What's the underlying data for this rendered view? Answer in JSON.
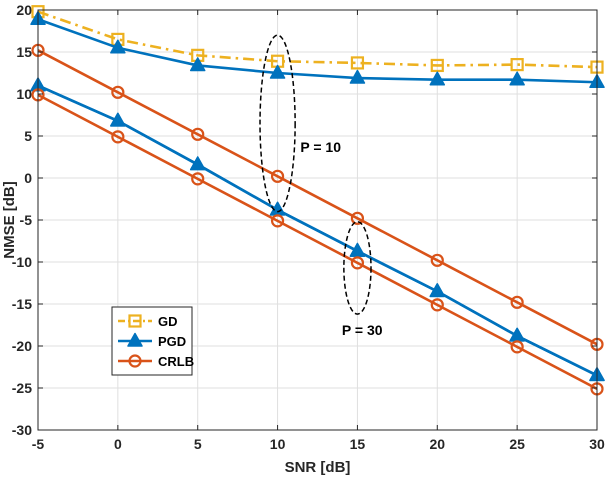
{
  "chart_data": {
    "type": "line",
    "xlabel": "SNR [dB]",
    "ylabel": "NMSE [dB]",
    "xlim": [
      -5,
      30
    ],
    "ylim": [
      -30,
      20
    ],
    "grid": true,
    "x": [
      -5,
      0,
      5,
      10,
      15,
      20,
      25,
      30
    ],
    "x_ticks": [
      "-5",
      "0",
      "5",
      "10",
      "15",
      "20",
      "25",
      "30"
    ],
    "y_ticks": [
      "-30",
      "-25",
      "-20",
      "-15",
      "-10",
      "-5",
      "0",
      "5",
      "10",
      "15",
      "20"
    ],
    "series": [
      {
        "name": "GD",
        "group": "P = 10",
        "color": "#EDB120",
        "style": "dashdot",
        "marker": "square",
        "values": [
          19.8,
          16.5,
          14.6,
          13.9,
          13.7,
          13.4,
          13.5,
          13.2
        ]
      },
      {
        "name": "PGD",
        "group": "P = 10",
        "color": "#0072BD",
        "style": "solid",
        "marker": "triangle",
        "values": [
          18.9,
          15.5,
          13.4,
          12.5,
          11.9,
          11.7,
          11.7,
          11.4
        ]
      },
      {
        "name": "PGD",
        "group": "P = 30",
        "color": "#0072BD",
        "style": "solid",
        "marker": "triangle",
        "values": [
          11.0,
          6.8,
          1.6,
          -3.8,
          -8.7,
          -13.5,
          -18.8,
          -23.5
        ]
      },
      {
        "name": "PGD",
        "group": "P = 30",
        "color": "#0072BD",
        "style": "solid",
        "marker": "triangle",
        "values": [
          11.0,
          6.8,
          1.6,
          -3.8,
          -8.7,
          -13.5,
          -18.8,
          -23.5
        ]
      },
      {
        "name": "CRLB",
        "group": "P = 10",
        "color": "#D95319",
        "style": "solid",
        "marker": "circle",
        "values": [
          15.2,
          10.2,
          5.2,
          0.2,
          -4.8,
          -9.8,
          -14.8,
          -19.8
        ]
      },
      {
        "name": "CRLB",
        "group": "P = 30",
        "color": "#D95319",
        "style": "solid",
        "marker": "circle",
        "values": [
          9.9,
          4.9,
          -0.1,
          -5.1,
          -10.1,
          -15.1,
          -20.1,
          -25.1
        ]
      }
    ],
    "legend": {
      "placement": "lower-left",
      "entries": [
        {
          "label": "GD",
          "color": "#EDB120",
          "style": "dashdot",
          "marker": "square"
        },
        {
          "label": "PGD",
          "color": "#0072BD",
          "style": "solid",
          "marker": "triangle"
        },
        {
          "label": "CRLB",
          "color": "#D95319",
          "style": "solid",
          "marker": "circle"
        }
      ]
    },
    "annotations": [
      {
        "text": "P = 10",
        "ellipse_center": [
          10,
          6.5
        ],
        "ellipse_radii": [
          1.1,
          10.5
        ],
        "label_at": [
          12.7,
          3.1
        ]
      },
      {
        "text": "P = 30",
        "ellipse_center": [
          15,
          -10.7
        ],
        "ellipse_radii": [
          0.85,
          5.5
        ],
        "label_at": [
          15.3,
          -18.7
        ]
      }
    ]
  }
}
